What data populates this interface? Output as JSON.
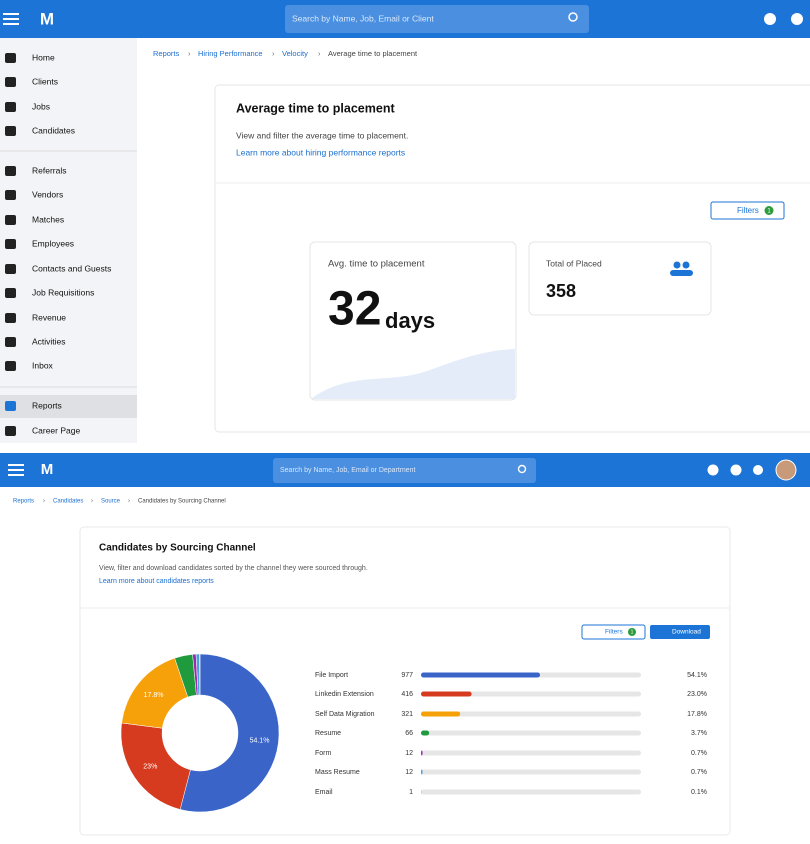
{
  "top": {
    "search_placeholder": "Search by Name, Job, Email or Client",
    "nav": [
      "Home",
      "Clients",
      "Jobs",
      "Candidates",
      "Referrals",
      "Vendors",
      "Matches",
      "Employees",
      "Contacts and Guests",
      "Job Requisitions",
      "Revenue",
      "Activities",
      "Inbox",
      "Reports",
      "Career Page"
    ],
    "breadcrumbs": [
      "Reports",
      "Hiring Performance",
      "Velocity",
      "Average time to placement"
    ],
    "title": "Average time to placement",
    "description": "View and filter the average time to placement.",
    "link": "Learn more about hiring performance reports",
    "filters": "Filters",
    "filter_count": 1,
    "avg_card": {
      "label": "Avg. time to placement",
      "value": 32,
      "unit": "days"
    },
    "placed_card": {
      "label": "Total of Placed",
      "value": 358
    }
  },
  "bottom": {
    "search_placeholder": "Search by Name, Job, Email or Department",
    "breadcrumbs": [
      "Reports",
      "Candidates",
      "Source",
      "Candidates by Sourcing Channel"
    ],
    "title": "Candidates by Sourcing Channel",
    "description": "View, filter and download candidates sorted by the channel they were sourced through.",
    "link": "Learn more about candidates reports",
    "filters": "Filters",
    "filter_count": 1,
    "download": "Download",
    "table": {
      "rows": [
        [
          "File Import",
          977,
          "54.1%"
        ],
        [
          "Linkedin Extension",
          416,
          "23.0%"
        ],
        [
          "Self Data Migration",
          321,
          "17.8%"
        ],
        [
          "Resume",
          66,
          "3.7%"
        ],
        [
          "Form",
          12,
          "0.7%"
        ],
        [
          "Mass Resume",
          12,
          "0.7%"
        ],
        [
          "Email",
          1,
          "0.1%"
        ]
      ]
    }
  },
  "chart_data": {
    "type": "donut",
    "categories": [
      "File Import",
      "Linkedin Extension",
      "Self Data Migration",
      "Resume",
      "Form",
      "Mass Resume",
      "Email"
    ],
    "values": [
      54.1,
      23,
      17.8,
      3.7,
      0.7,
      0.7,
      0.1
    ],
    "value_labels": [
      "54.1%",
      "23%",
      "17.8%",
      null,
      null,
      null,
      null
    ],
    "colors": [
      "#3a64c8",
      "#d63b1f",
      "#f6a10a",
      "#1f9a3d",
      "#9c27b0",
      "#4a9fe0",
      "#8a8a8a"
    ]
  }
}
